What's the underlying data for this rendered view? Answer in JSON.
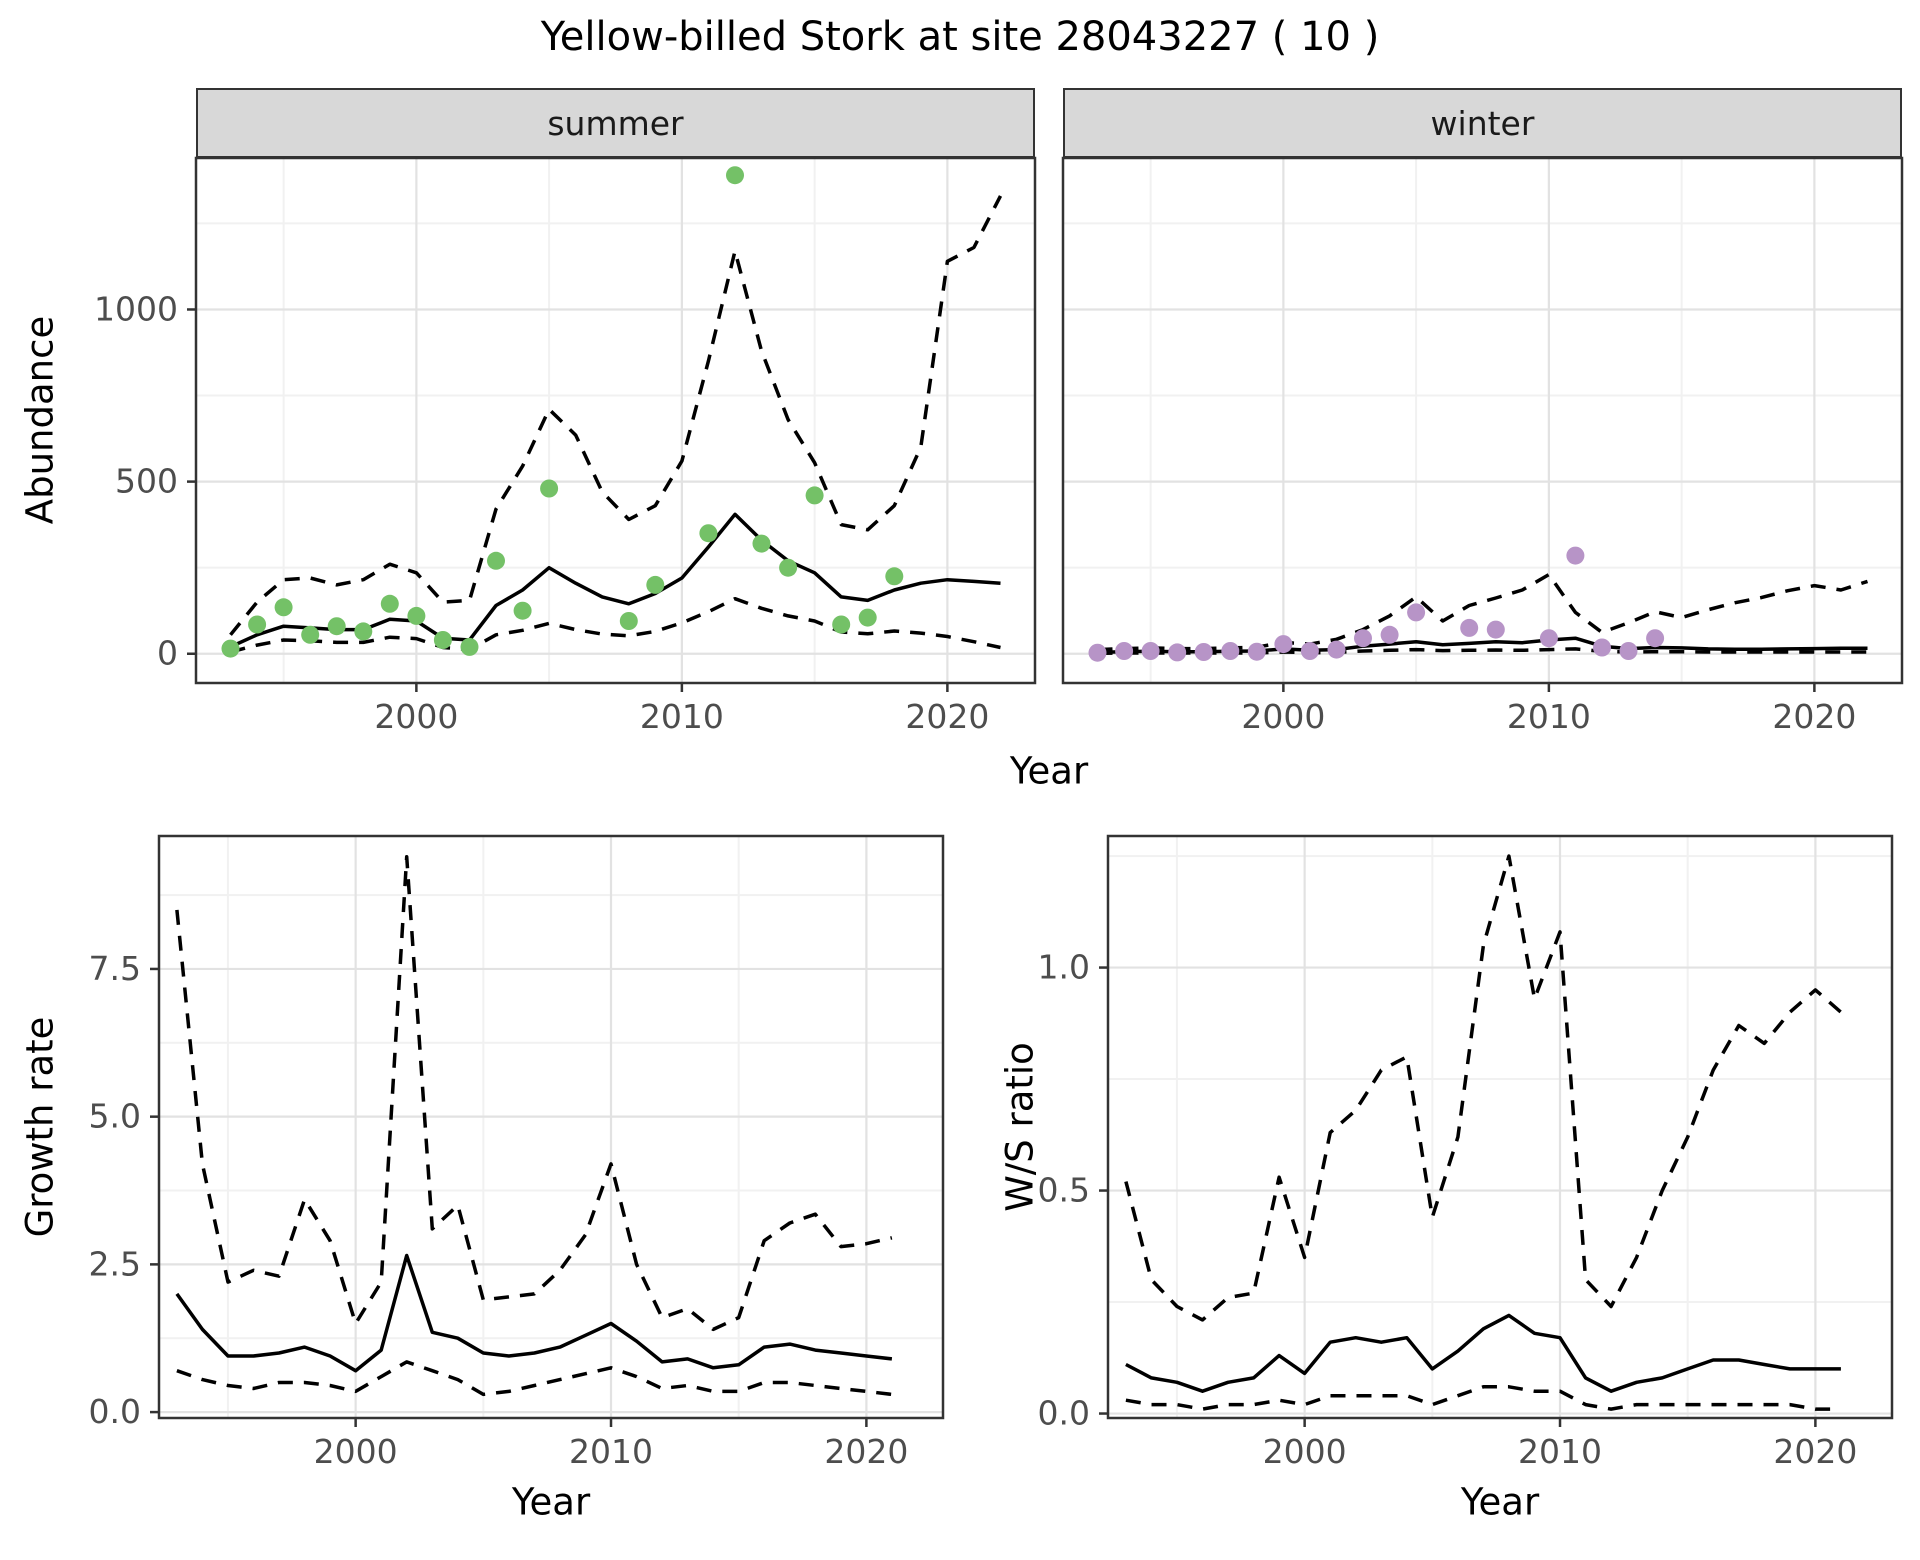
{
  "title": "Yellow-billed Stork at site 28043227 ( 10 )",
  "labels": {
    "abundance": "Abundance",
    "year": "Year",
    "growth_rate": "Growth rate",
    "ws_ratio": "W/S ratio"
  },
  "facets": [
    {
      "label": "summer"
    },
    {
      "label": "winter"
    }
  ],
  "theme": {
    "summer_point_color": "#74c167",
    "winter_point_color": "#b794c7",
    "line_color": "#000000",
    "grid_major": "#e2e2e2",
    "grid_minor": "#f1f1f1",
    "panel_border": "#333333",
    "strip_bg": "#d8d8d8",
    "tick_color": "#333333",
    "tick_label_color": "#4d4d4d"
  },
  "chart_data": [
    {
      "name": "abundance-summer",
      "type": "scatter+line",
      "facet": "summer",
      "title": "",
      "xlabel": "Year",
      "ylabel": "Abundance",
      "xlim": [
        1991.7,
        2023.3
      ],
      "ylim": [
        -85,
        1440
      ],
      "xticks": [
        2000,
        2010,
        2020
      ],
      "xtick_labels": [
        "2000",
        "2010",
        "2020"
      ],
      "yticks": [
        0,
        500,
        1000
      ],
      "ytick_labels": [
        "0",
        "500",
        "1000"
      ],
      "xminor": [
        1995,
        2005,
        2015
      ],
      "yminor": [
        250,
        750,
        1250
      ],
      "grid": true,
      "points": {
        "label": "observed counts",
        "x": [
          1993,
          1994,
          1995,
          1996,
          1997,
          1998,
          1999,
          2000,
          2001,
          2002,
          2003,
          2004,
          2005,
          2008,
          2009,
          2011,
          2012,
          2013,
          2014,
          2015,
          2016,
          2017,
          2018
        ],
        "y": [
          15,
          85,
          135,
          55,
          80,
          65,
          145,
          110,
          40,
          20,
          270,
          125,
          480,
          95,
          200,
          350,
          1390,
          320,
          250,
          460,
          85,
          105,
          225
        ]
      },
      "line_x": [
        1993,
        1994,
        1995,
        1996,
        1997,
        1998,
        1999,
        2000,
        2001,
        2002,
        2003,
        2004,
        2005,
        2006,
        2007,
        2008,
        2009,
        2010,
        2011,
        2012,
        2013,
        2014,
        2015,
        2016,
        2017,
        2018,
        2019,
        2020,
        2021,
        2022
      ],
      "lines": [
        {
          "name": "fit",
          "style": "solid",
          "y": [
            20,
            55,
            80,
            75,
            70,
            70,
            100,
            95,
            45,
            40,
            140,
            185,
            250,
            205,
            165,
            145,
            175,
            220,
            310,
            405,
            330,
            270,
            235,
            165,
            155,
            185,
            205,
            215,
            210,
            205
          ]
        },
        {
          "name": "upper-ci",
          "style": "dashed",
          "y": [
            55,
            150,
            215,
            220,
            200,
            215,
            260,
            235,
            150,
            155,
            420,
            545,
            710,
            635,
            470,
            390,
            430,
            560,
            850,
            1170,
            880,
            680,
            555,
            375,
            360,
            430,
            600,
            1140,
            1180,
            1330
          ]
        },
        {
          "name": "lower-ci",
          "style": "dashed",
          "y": [
            5,
            25,
            40,
            38,
            33,
            33,
            48,
            44,
            18,
            12,
            55,
            68,
            88,
            70,
            57,
            52,
            65,
            90,
            122,
            160,
            132,
            110,
            95,
            63,
            58,
            66,
            60,
            50,
            35,
            18
          ]
        }
      ]
    },
    {
      "name": "abundance-winter",
      "type": "scatter+line",
      "facet": "winter",
      "title": "",
      "xlabel": "Year",
      "ylabel": "Abundance",
      "xlim": [
        1991.7,
        2023.3
      ],
      "ylim": [
        -85,
        1440
      ],
      "xticks": [
        2000,
        2010,
        2020
      ],
      "xtick_labels": [
        "2000",
        "2010",
        "2020"
      ],
      "yticks": [
        0,
        500,
        1000
      ],
      "ytick_labels": [
        "0",
        "500",
        "1000"
      ],
      "xminor": [
        1995,
        2005,
        2015
      ],
      "yminor": [
        250,
        750,
        1250
      ],
      "grid": true,
      "points": {
        "label": "observed counts",
        "x": [
          1993,
          1994,
          1995,
          1996,
          1997,
          1998,
          1999,
          2000,
          2001,
          2002,
          2003,
          2004,
          2005,
          2007,
          2008,
          2010,
          2011,
          2012,
          2013,
          2014
        ],
        "y": [
          3,
          8,
          8,
          4,
          5,
          8,
          6,
          28,
          8,
          12,
          45,
          55,
          120,
          75,
          70,
          45,
          285,
          18,
          8,
          45
        ]
      },
      "line_x": [
        1993,
        1994,
        1995,
        1996,
        1997,
        1998,
        1999,
        2000,
        2001,
        2002,
        2003,
        2004,
        2005,
        2006,
        2007,
        2008,
        2009,
        2010,
        2011,
        2012,
        2013,
        2014,
        2015,
        2016,
        2017,
        2018,
        2019,
        2020,
        2021,
        2022
      ],
      "lines": [
        {
          "name": "fit",
          "style": "solid",
          "y": [
            4,
            6,
            7,
            6,
            6,
            7,
            8,
            14,
            10,
            12,
            22,
            28,
            35,
            26,
            30,
            35,
            32,
            40,
            45,
            22,
            15,
            18,
            17,
            14,
            13,
            13,
            14,
            15,
            16,
            16
          ]
        },
        {
          "name": "upper-ci",
          "style": "dashed",
          "y": [
            12,
            15,
            17,
            15,
            15,
            17,
            19,
            33,
            28,
            42,
            70,
            110,
            165,
            95,
            140,
            162,
            185,
            230,
            120,
            62,
            90,
            122,
            105,
            128,
            148,
            163,
            183,
            198,
            185,
            210
          ]
        },
        {
          "name": "lower-ci",
          "style": "dashed",
          "y": [
            1,
            2,
            2,
            2,
            2,
            2,
            2,
            5,
            3,
            4,
            8,
            10,
            12,
            9,
            10,
            11,
            10,
            12,
            14,
            7,
            5,
            6,
            6,
            5,
            5,
            5,
            5,
            5,
            5,
            5
          ]
        }
      ]
    },
    {
      "name": "growth-rate",
      "type": "line",
      "facet": "",
      "title": "",
      "xlabel": "Year",
      "ylabel": "Growth rate",
      "xlim": [
        1992.3,
        2023
      ],
      "ylim": [
        -0.1,
        9.75
      ],
      "xticks": [
        2000,
        2010,
        2020
      ],
      "xtick_labels": [
        "2000",
        "2010",
        "2020"
      ],
      "yticks": [
        0,
        2.5,
        5,
        7.5
      ],
      "ytick_labels": [
        "0.0",
        "2.5",
        "5.0",
        "7.5"
      ],
      "xminor": [
        1995,
        2005,
        2015
      ],
      "yminor": [
        1.25,
        3.75,
        6.25,
        8.75
      ],
      "grid": true,
      "points": null,
      "line_x": [
        1993,
        1994,
        1995,
        1996,
        1997,
        1998,
        1999,
        2000,
        2001,
        2002,
        2003,
        2004,
        2005,
        2006,
        2007,
        2008,
        2009,
        2010,
        2011,
        2012,
        2013,
        2014,
        2015,
        2016,
        2017,
        2018,
        2019,
        2020,
        2021
      ],
      "lines": [
        {
          "name": "fit",
          "style": "solid",
          "y": [
            2.0,
            1.4,
            0.95,
            0.95,
            1.0,
            1.1,
            0.95,
            0.7,
            1.05,
            2.65,
            1.35,
            1.25,
            1.0,
            0.95,
            1.0,
            1.1,
            1.3,
            1.5,
            1.2,
            0.85,
            0.9,
            0.75,
            0.8,
            1.1,
            1.15,
            1.05,
            1.0,
            0.95,
            0.9
          ]
        },
        {
          "name": "upper-ci",
          "style": "dashed",
          "y": [
            8.5,
            4.2,
            2.2,
            2.4,
            2.3,
            3.6,
            2.9,
            1.5,
            2.2,
            9.4,
            3.1,
            3.5,
            1.9,
            1.95,
            2.0,
            2.4,
            3.0,
            4.2,
            2.5,
            1.6,
            1.75,
            1.4,
            1.6,
            2.9,
            3.2,
            3.35,
            2.8,
            2.85,
            2.95
          ]
        },
        {
          "name": "lower-ci",
          "style": "dashed",
          "y": [
            0.7,
            0.55,
            0.45,
            0.4,
            0.5,
            0.5,
            0.45,
            0.35,
            0.6,
            0.85,
            0.7,
            0.55,
            0.3,
            0.35,
            0.45,
            0.55,
            0.65,
            0.75,
            0.6,
            0.4,
            0.45,
            0.35,
            0.35,
            0.5,
            0.5,
            0.45,
            0.4,
            0.35,
            0.3
          ]
        }
      ]
    },
    {
      "name": "ws-ratio",
      "type": "line",
      "facet": "",
      "title": "",
      "xlabel": "Year",
      "ylabel": "W/S ratio",
      "xlim": [
        1992.3,
        2023
      ],
      "ylim": [
        -0.01,
        1.295
      ],
      "xticks": [
        2000,
        2010,
        2020
      ],
      "xtick_labels": [
        "2000",
        "2010",
        "2020"
      ],
      "yticks": [
        0,
        0.5,
        1.0
      ],
      "ytick_labels": [
        "0.0",
        "0.5",
        "1.0"
      ],
      "xminor": [
        1995,
        2005,
        2015
      ],
      "yminor": [
        0.25,
        0.75,
        1.25
      ],
      "grid": true,
      "points": null,
      "line_x": [
        1993,
        1994,
        1995,
        1996,
        1997,
        1998,
        1999,
        2000,
        2001,
        2002,
        2003,
        2004,
        2005,
        2006,
        2007,
        2008,
        2009,
        2010,
        2011,
        2012,
        2013,
        2014,
        2015,
        2016,
        2017,
        2018,
        2019,
        2020,
        2021
      ],
      "lines": [
        {
          "name": "fit",
          "style": "solid",
          "y": [
            0.11,
            0.08,
            0.07,
            0.05,
            0.07,
            0.08,
            0.13,
            0.09,
            0.16,
            0.17,
            0.16,
            0.17,
            0.1,
            0.14,
            0.19,
            0.22,
            0.18,
            0.17,
            0.08,
            0.05,
            0.07,
            0.08,
            0.1,
            0.12,
            0.12,
            0.11,
            0.1,
            0.1,
            0.1
          ]
        },
        {
          "name": "upper-ci",
          "style": "dashed",
          "y": [
            0.52,
            0.3,
            0.24,
            0.21,
            0.26,
            0.27,
            0.53,
            0.35,
            0.63,
            0.68,
            0.77,
            0.8,
            0.44,
            0.62,
            1.05,
            1.25,
            0.93,
            1.08,
            0.3,
            0.24,
            0.35,
            0.5,
            0.62,
            0.77,
            0.87,
            0.83,
            0.9,
            0.95,
            0.9
          ]
        },
        {
          "name": "lower-ci",
          "style": "dashed",
          "y": [
            0.03,
            0.02,
            0.02,
            0.01,
            0.02,
            0.02,
            0.03,
            0.02,
            0.04,
            0.04,
            0.04,
            0.04,
            0.02,
            0.04,
            0.06,
            0.06,
            0.05,
            0.05,
            0.02,
            0.01,
            0.02,
            0.02,
            0.02,
            0.02,
            0.02,
            0.02,
            0.02,
            0.01,
            0.01
          ]
        }
      ]
    }
  ]
}
